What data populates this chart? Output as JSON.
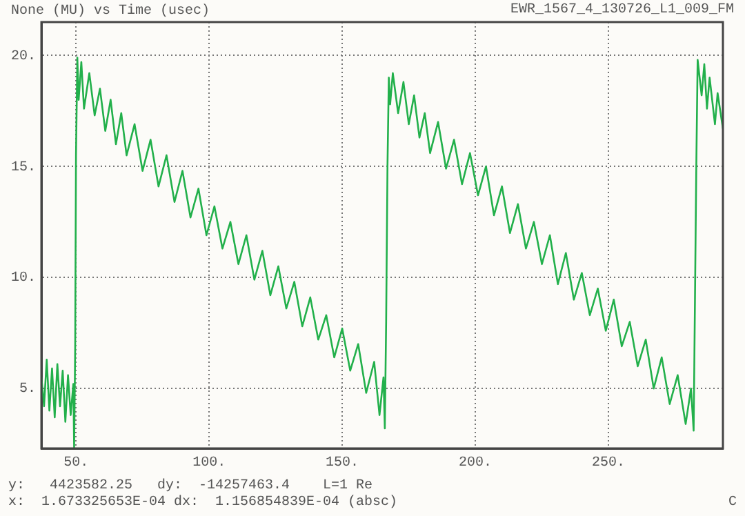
{
  "chart_data": {
    "type": "line",
    "title": "None (MU) vs Time (usec)",
    "subtitle": "EWR_1567_4_130726_L1_009_FM",
    "annotations": [
      "y:   4423582.25   dy:  -14257463.4    L=1 Re",
      "x:  1.673325653E-04 dx:  1.156854839E-04 (absc)",
      "C"
    ],
    "xlim": [
      37,
      293
    ],
    "ylim": [
      2.3,
      21.5
    ],
    "xticks": [
      {
        "value": 50,
        "label": "50."
      },
      {
        "value": 100,
        "label": "100."
      },
      {
        "value": 150,
        "label": "150."
      },
      {
        "value": 200,
        "label": "200."
      },
      {
        "value": 250,
        "label": "250."
      }
    ],
    "yticks": [
      {
        "value": 5,
        "label": "5."
      },
      {
        "value": 10,
        "label": "10."
      },
      {
        "value": 15,
        "label": "15."
      },
      {
        "value": 20,
        "label": "20."
      }
    ],
    "grid": true,
    "legend": false,
    "marker": "none",
    "line_style": "solid",
    "series": [
      {
        "color": "#22b04b",
        "x": [
          37,
          38,
          39,
          40,
          41,
          42,
          43,
          44,
          45,
          46,
          47,
          48,
          49,
          49.3,
          49.7,
          50,
          50.5,
          51,
          52,
          53,
          55,
          57,
          59,
          61,
          63,
          65,
          67,
          69,
          72,
          75,
          78,
          81,
          84,
          87,
          90,
          93,
          96,
          99,
          102,
          105,
          108,
          111,
          114,
          117,
          120,
          123,
          126,
          129,
          132,
          135,
          138,
          141,
          144,
          147,
          150,
          153,
          156,
          159,
          162,
          164,
          165.5,
          166,
          166.5,
          167,
          167.5,
          168,
          169,
          171,
          173,
          175,
          177,
          179,
          181,
          183,
          186,
          189,
          192,
          195,
          198,
          201,
          204,
          207,
          210,
          213,
          216,
          219,
          222,
          225,
          228,
          231,
          234,
          237,
          240,
          243,
          246,
          249,
          252,
          255,
          258,
          261,
          264,
          267,
          270,
          273,
          276,
          279,
          281,
          282,
          282.5,
          283,
          283.5,
          285,
          286,
          287,
          288,
          290,
          291,
          293
        ],
        "values": [
          5.5,
          4.2,
          6.3,
          4.0,
          5.9,
          3.7,
          6.1,
          4.2,
          5.8,
          3.5,
          5.6,
          3.8,
          5.2,
          2.3,
          7,
          15.5,
          19.9,
          18.0,
          19.7,
          17.6,
          19.2,
          17.3,
          18.5,
          16.6,
          18.0,
          16.0,
          17.4,
          15.5,
          16.9,
          14.8,
          16.2,
          14.1,
          15.5,
          13.4,
          14.8,
          12.7,
          14.0,
          11.9,
          13.2,
          11.3,
          12.5,
          10.6,
          11.9,
          9.9,
          11.2,
          9.2,
          10.5,
          8.6,
          9.8,
          7.8,
          9.1,
          7.2,
          8.3,
          6.4,
          7.7,
          5.8,
          7.0,
          4.8,
          6.2,
          3.8,
          5.5,
          3.2,
          8,
          15,
          19.0,
          17.8,
          19.2,
          17.4,
          18.8,
          16.9,
          18.2,
          16.3,
          17.4,
          15.6,
          17.0,
          14.9,
          16.2,
          14.2,
          15.6,
          13.7,
          15.0,
          12.8,
          14.1,
          12.0,
          13.3,
          11.3,
          12.5,
          10.6,
          11.9,
          9.7,
          11.1,
          9.0,
          10.2,
          8.3,
          9.5,
          7.6,
          9.0,
          6.9,
          8.0,
          6.0,
          7.2,
          5.0,
          6.4,
          4.3,
          5.6,
          3.4,
          5.0,
          3.1,
          9,
          15,
          19.8,
          18.2,
          19.6,
          17.6,
          19.0,
          16.9,
          18.3,
          16.7
        ]
      }
    ]
  }
}
